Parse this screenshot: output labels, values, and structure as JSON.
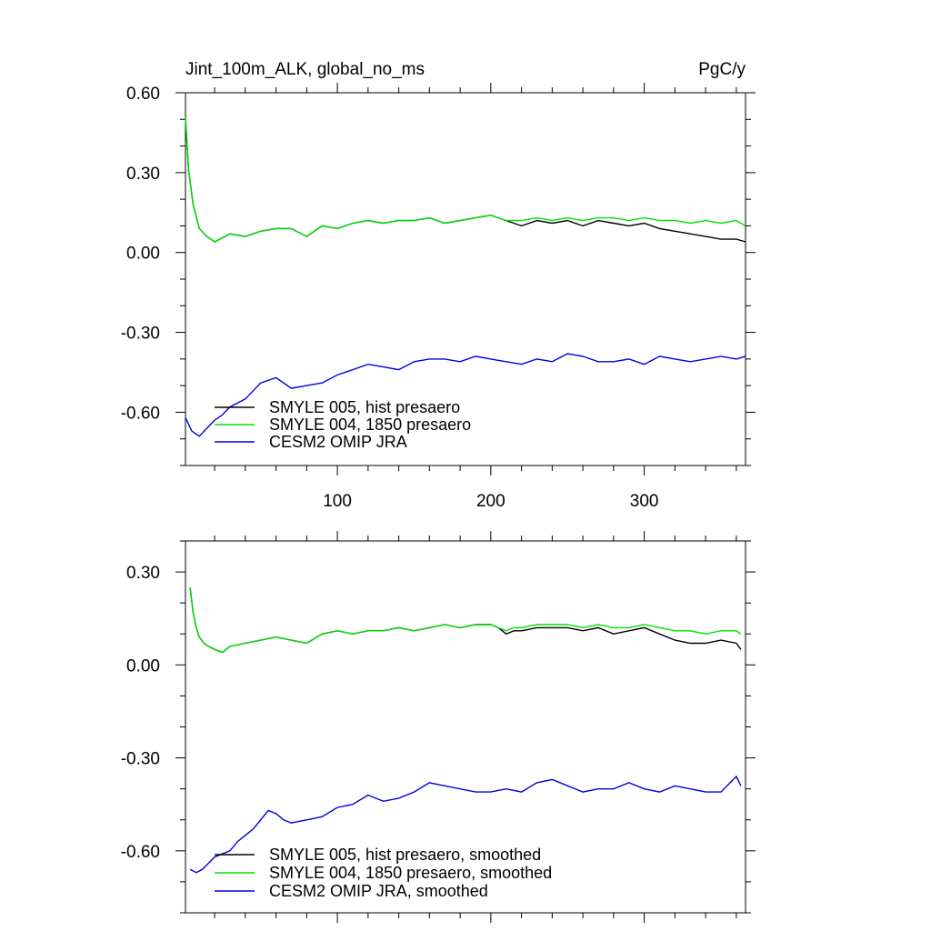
{
  "chart_data": [
    {
      "type": "line",
      "title": "Jint_100m_ALK, global_no_ms",
      "units": "PgC/y",
      "xlim": [
        1,
        366
      ],
      "ylim": [
        -0.8,
        0.6
      ],
      "x_ticks": [
        100,
        200,
        300
      ],
      "x_tick_labels": [
        "100",
        "200",
        "300"
      ],
      "y_ticks": [
        0.6,
        0.3,
        0.0,
        -0.3,
        -0.6
      ],
      "y_tick_labels": [
        "0.60",
        "0.30",
        "0.00",
        "-0.30",
        "-0.60"
      ],
      "legend_position": "lower-left",
      "series": [
        {
          "name": "SMYLE 005, hist presaero",
          "color": "#000000",
          "x": [
            1,
            3,
            6,
            10,
            15,
            20,
            30,
            40,
            50,
            60,
            70,
            80,
            90,
            100,
            110,
            120,
            130,
            140,
            150,
            160,
            170,
            180,
            190,
            200,
            205,
            210,
            215,
            220,
            230,
            240,
            250,
            260,
            270,
            280,
            290,
            300,
            310,
            320,
            330,
            340,
            350,
            360,
            366
          ],
          "y": [
            0.51,
            0.31,
            0.18,
            0.09,
            0.06,
            0.04,
            0.07,
            0.06,
            0.08,
            0.09,
            0.09,
            0.06,
            0.1,
            0.09,
            0.11,
            0.12,
            0.11,
            0.12,
            0.12,
            0.13,
            0.11,
            0.12,
            0.13,
            0.14,
            0.13,
            0.12,
            0.11,
            0.1,
            0.12,
            0.11,
            0.12,
            0.1,
            0.12,
            0.11,
            0.1,
            0.11,
            0.09,
            0.08,
            0.07,
            0.06,
            0.05,
            0.05,
            0.04
          ]
        },
        {
          "name": "SMYLE 004, 1850 presaero",
          "color": "#00e000",
          "x": [
            1,
            3,
            6,
            10,
            15,
            20,
            30,
            40,
            50,
            60,
            70,
            80,
            90,
            100,
            110,
            120,
            130,
            140,
            150,
            160,
            170,
            180,
            190,
            200,
            205,
            210,
            215,
            220,
            230,
            240,
            250,
            260,
            270,
            280,
            290,
            300,
            310,
            320,
            330,
            340,
            350,
            360,
            366
          ],
          "y": [
            0.51,
            0.31,
            0.18,
            0.09,
            0.06,
            0.04,
            0.07,
            0.06,
            0.08,
            0.09,
            0.09,
            0.06,
            0.1,
            0.09,
            0.11,
            0.12,
            0.11,
            0.12,
            0.12,
            0.13,
            0.11,
            0.12,
            0.13,
            0.14,
            0.13,
            0.12,
            0.12,
            0.12,
            0.13,
            0.12,
            0.13,
            0.12,
            0.13,
            0.13,
            0.12,
            0.13,
            0.12,
            0.12,
            0.11,
            0.12,
            0.11,
            0.12,
            0.1
          ]
        },
        {
          "name": "CESM2 OMIP JRA",
          "color": "#0000e0",
          "x": [
            1,
            5,
            10,
            15,
            20,
            25,
            30,
            40,
            50,
            60,
            70,
            80,
            90,
            100,
            110,
            120,
            130,
            140,
            150,
            160,
            170,
            180,
            190,
            200,
            210,
            220,
            230,
            240,
            250,
            260,
            270,
            280,
            290,
            300,
            310,
            320,
            330,
            340,
            350,
            360,
            366
          ],
          "y": [
            -0.62,
            -0.67,
            -0.69,
            -0.66,
            -0.63,
            -0.61,
            -0.58,
            -0.55,
            -0.49,
            -0.47,
            -0.51,
            -0.5,
            -0.49,
            -0.46,
            -0.44,
            -0.42,
            -0.43,
            -0.44,
            -0.41,
            -0.4,
            -0.4,
            -0.41,
            -0.39,
            -0.4,
            -0.41,
            -0.42,
            -0.4,
            -0.41,
            -0.38,
            -0.39,
            -0.41,
            -0.41,
            -0.4,
            -0.42,
            -0.39,
            -0.4,
            -0.41,
            -0.4,
            -0.39,
            -0.4,
            -0.39
          ]
        }
      ]
    },
    {
      "type": "line",
      "xlim": [
        1,
        366
      ],
      "ylim": [
        -0.8,
        0.4
      ],
      "x_ticks": [
        100,
        200,
        300
      ],
      "y_ticks": [
        0.3,
        0.0,
        -0.3,
        -0.6
      ],
      "y_tick_labels": [
        "0.30",
        "0.00",
        "-0.30",
        "-0.60"
      ],
      "legend_position": "lower-left",
      "series": [
        {
          "name": "SMYLE 005, hist presaero, smoothed",
          "color": "#000000",
          "x": [
            4,
            6,
            8,
            10,
            13,
            16,
            20,
            25,
            30,
            40,
            50,
            60,
            70,
            80,
            90,
            100,
            110,
            120,
            130,
            140,
            150,
            160,
            170,
            180,
            190,
            200,
            205,
            210,
            215,
            220,
            230,
            240,
            250,
            260,
            270,
            280,
            290,
            300,
            310,
            320,
            330,
            340,
            350,
            360,
            363
          ],
          "y": [
            0.25,
            0.17,
            0.12,
            0.09,
            0.07,
            0.06,
            0.05,
            0.04,
            0.06,
            0.07,
            0.08,
            0.09,
            0.08,
            0.07,
            0.1,
            0.11,
            0.1,
            0.11,
            0.11,
            0.12,
            0.11,
            0.12,
            0.13,
            0.12,
            0.13,
            0.13,
            0.12,
            0.1,
            0.11,
            0.11,
            0.12,
            0.12,
            0.12,
            0.11,
            0.12,
            0.1,
            0.11,
            0.12,
            0.1,
            0.08,
            0.07,
            0.07,
            0.08,
            0.07,
            0.05
          ]
        },
        {
          "name": "SMYLE 004, 1850 presaero, smoothed",
          "color": "#00e000",
          "x": [
            4,
            6,
            8,
            10,
            13,
            16,
            20,
            25,
            30,
            40,
            50,
            60,
            70,
            80,
            90,
            100,
            110,
            120,
            130,
            140,
            150,
            160,
            170,
            180,
            190,
            200,
            205,
            210,
            215,
            220,
            230,
            240,
            250,
            260,
            270,
            280,
            290,
            300,
            310,
            320,
            330,
            340,
            350,
            360,
            363
          ],
          "y": [
            0.25,
            0.17,
            0.12,
            0.09,
            0.07,
            0.06,
            0.05,
            0.04,
            0.06,
            0.07,
            0.08,
            0.09,
            0.08,
            0.07,
            0.1,
            0.11,
            0.1,
            0.11,
            0.11,
            0.12,
            0.11,
            0.12,
            0.13,
            0.12,
            0.13,
            0.13,
            0.12,
            0.11,
            0.12,
            0.12,
            0.13,
            0.13,
            0.13,
            0.12,
            0.13,
            0.12,
            0.12,
            0.13,
            0.12,
            0.11,
            0.11,
            0.1,
            0.11,
            0.11,
            0.1
          ]
        },
        {
          "name": "CESM2 OMIP JRA, smoothed",
          "color": "#0000e0",
          "x": [
            4,
            8,
            12,
            16,
            20,
            25,
            30,
            35,
            40,
            45,
            50,
            55,
            60,
            65,
            70,
            80,
            90,
            100,
            110,
            120,
            130,
            140,
            150,
            160,
            170,
            180,
            190,
            200,
            210,
            220,
            230,
            240,
            250,
            260,
            270,
            280,
            290,
            300,
            310,
            320,
            330,
            340,
            350,
            360,
            363
          ],
          "y": [
            -0.66,
            -0.67,
            -0.66,
            -0.64,
            -0.62,
            -0.61,
            -0.6,
            -0.57,
            -0.55,
            -0.53,
            -0.5,
            -0.47,
            -0.48,
            -0.5,
            -0.51,
            -0.5,
            -0.49,
            -0.46,
            -0.45,
            -0.42,
            -0.44,
            -0.43,
            -0.41,
            -0.38,
            -0.39,
            -0.4,
            -0.41,
            -0.41,
            -0.4,
            -0.41,
            -0.38,
            -0.37,
            -0.39,
            -0.41,
            -0.4,
            -0.4,
            -0.38,
            -0.4,
            -0.41,
            -0.39,
            -0.4,
            -0.41,
            -0.41,
            -0.36,
            -0.39
          ]
        }
      ]
    }
  ]
}
